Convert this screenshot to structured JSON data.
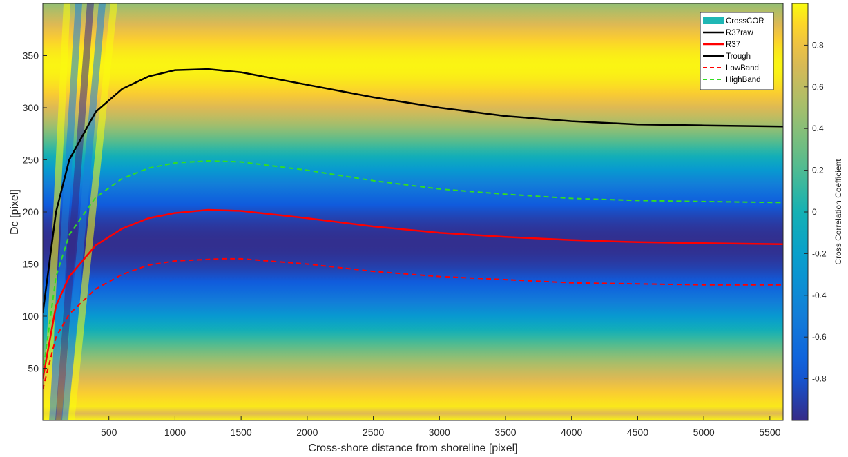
{
  "chart_data": {
    "type": "heatmap",
    "title": "",
    "xlabel": "Cross-shore distance from shoreline [pixel]",
    "ylabel": "Dc [pixel]",
    "xlim": [
      0,
      5600
    ],
    "ylim": [
      0,
      400
    ],
    "x_ticks": [
      500,
      1000,
      1500,
      2000,
      2500,
      3000,
      3500,
      4000,
      4500,
      5000,
      5500
    ],
    "y_ticks": [
      50,
      100,
      150,
      200,
      250,
      300,
      350
    ],
    "colorbar": {
      "label": "Cross Correlation Coefficient",
      "range": [
        -1,
        1
      ],
      "ticks": [
        0.8,
        0.6,
        0.4,
        0.2,
        0,
        -0.2,
        -0.4,
        -0.6,
        -0.8
      ],
      "colormap": "parula"
    },
    "legend": {
      "position": "top-right",
      "entries": [
        "CrossCOR",
        "R37raw",
        "R37",
        "Trough",
        "LowBand",
        "HighBand"
      ]
    },
    "series": [
      {
        "name": "R37",
        "style": "solid",
        "color": "#ff0000",
        "x": [
          0,
          100,
          200,
          400,
          600,
          800,
          1000,
          1250,
          1500,
          2000,
          2500,
          3000,
          3500,
          4000,
          4500,
          5000,
          5600
        ],
        "y": [
          40,
          110,
          138,
          168,
          184,
          194,
          199,
          202,
          201,
          194,
          186,
          180,
          176,
          173,
          171,
          170,
          169
        ]
      },
      {
        "name": "Trough",
        "style": "solid",
        "color": "#000000",
        "x": [
          0,
          100,
          200,
          400,
          600,
          800,
          1000,
          1250,
          1500,
          2000,
          2500,
          3000,
          3500,
          4000,
          4500,
          5000,
          5600
        ],
        "y": [
          103,
          200,
          250,
          296,
          318,
          330,
          336,
          337,
          334,
          322,
          310,
          300,
          292,
          287,
          284,
          283,
          282
        ]
      },
      {
        "name": "LowBand",
        "style": "dashed",
        "color": "#ff0000",
        "x": [
          0,
          100,
          200,
          400,
          600,
          800,
          1000,
          1350,
          1500,
          2000,
          2500,
          3000,
          3500,
          4000,
          4500,
          5000,
          5600
        ],
        "y": [
          30,
          80,
          102,
          126,
          140,
          149,
          153,
          155,
          155,
          150,
          143,
          138,
          135,
          132,
          131,
          130,
          130
        ]
      },
      {
        "name": "HighBand",
        "style": "dashed",
        "color": "#00cc00",
        "x": [
          0,
          100,
          200,
          400,
          600,
          800,
          1000,
          1250,
          1500,
          2000,
          2500,
          3000,
          3500,
          4000,
          4500,
          5000,
          5600
        ],
        "y": [
          45,
          138,
          178,
          214,
          232,
          242,
          247,
          249,
          248,
          240,
          230,
          222,
          217,
          213,
          211,
          210,
          209
        ]
      }
    ]
  }
}
